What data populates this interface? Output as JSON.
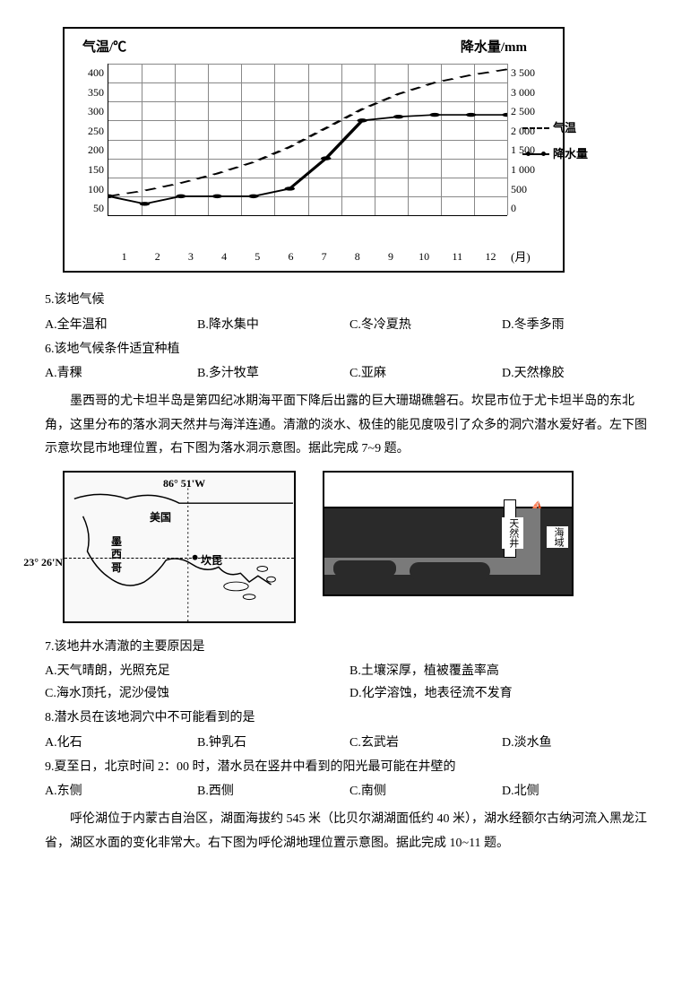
{
  "chart": {
    "type": "combo",
    "left_axis_title": "气温/℃",
    "right_axis_title": "降水量/mm",
    "left_ticks": [
      "400",
      "350",
      "300",
      "250",
      "200",
      "150",
      "100",
      "50"
    ],
    "right_ticks": [
      "3 500",
      "3 000",
      "2 500",
      "2 000",
      "1 500",
      "1 000",
      "500",
      "0"
    ],
    "x_ticks": [
      "1",
      "2",
      "3",
      "4",
      "5",
      "6",
      "7",
      "8",
      "9",
      "10",
      "11",
      "12"
    ],
    "x_unit": "(月)",
    "legend_temp": "气温",
    "legend_precip": "降水量",
    "temp_values": [
      50,
      65,
      85,
      110,
      140,
      180,
      230,
      280,
      320,
      350,
      370,
      385
    ],
    "precip_values": [
      50,
      30,
      50,
      50,
      50,
      70,
      150,
      250,
      260,
      265,
      265,
      265
    ],
    "left_ylim": [
      0,
      400
    ],
    "right_ylim": [
      0,
      3500
    ],
    "temp_style": {
      "dash": "5,4",
      "width": 2,
      "color": "#000000"
    },
    "precip_style": {
      "marker": "circle",
      "marker_size": 3,
      "width": 2,
      "color": "#000000"
    },
    "grid_color": "#888888",
    "background_color": "#ffffff"
  },
  "q5": {
    "stem": "5.该地气候",
    "A": "A.全年温和",
    "B": "B.降水集中",
    "C": "C.冬冷夏热",
    "D": "D.冬季多雨"
  },
  "q6": {
    "stem": "6.该地气候条件适宜种植",
    "A": "A.青稞",
    "B": "B.多汁牧草",
    "C": "C.亚麻",
    "D": "D.天然橡胶"
  },
  "passage2": "墨西哥的尤卡坦半岛是第四纪冰期海平面下降后出露的巨大珊瑚礁磐石。坎昆市位于尤卡坦半岛的东北角，这里分布的落水洞天然井与海洋连通。清澈的淡水、极佳的能见度吸引了众多的洞穴潜水爱好者。左下图示意坎昆市地理位置，右下图为落水洞示意图。据此完成 7~9 题。",
  "map": {
    "lon_label": "86° 51'W",
    "lat_label": "23° 26'N",
    "country1": "美国",
    "country2_line1": "墨",
    "country2_line2": "西",
    "country2_line3": "哥",
    "city": "坎昆"
  },
  "cave": {
    "well_label": "天然井",
    "sea_label": "海域"
  },
  "q7": {
    "stem": "7.该地井水清澈的主要原因是",
    "A": "A.天气晴朗，光照充足",
    "B": "B.土壤深厚，植被覆盖率高",
    "C": "C.海水顶托，泥沙侵蚀",
    "D": "D.化学溶蚀，地表径流不发育"
  },
  "q8": {
    "stem": "8.潜水员在该地洞穴中不可能看到的是",
    "A": "A.化石",
    "B": "B.钟乳石",
    "C": "C.玄武岩",
    "D": "D.淡水鱼"
  },
  "q9": {
    "stem": "9.夏至日，北京时间 2：00 时，潜水员在竖井中看到的阳光最可能在井壁的",
    "A": "A.东侧",
    "B": "B.西侧",
    "C": "C.南侧",
    "D": "D.北侧"
  },
  "passage3": "呼伦湖位于内蒙古自治区，湖面海拔约 545 米（比贝尔湖湖面低约 40 米），湖水经额尔古纳河流入黑龙江省，湖区水面的变化非常大。右下图为呼伦湖地理位置示意图。据此完成 10~11 题。"
}
